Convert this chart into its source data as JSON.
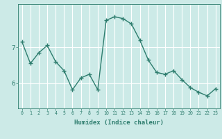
{
  "x": [
    0,
    1,
    2,
    3,
    4,
    5,
    6,
    7,
    8,
    9,
    10,
    11,
    12,
    13,
    14,
    15,
    16,
    17,
    18,
    19,
    20,
    21,
    22,
    23
  ],
  "y": [
    7.15,
    6.55,
    6.85,
    7.05,
    6.6,
    6.35,
    5.82,
    6.15,
    6.25,
    5.82,
    7.75,
    7.85,
    7.8,
    7.65,
    7.2,
    6.65,
    6.3,
    6.25,
    6.35,
    6.1,
    5.88,
    5.75,
    5.65,
    5.85
  ],
  "xlabel": "Humidex (Indice chaleur)",
  "ylabel": "",
  "yticks": [
    6,
    7
  ],
  "ylim": [
    5.3,
    8.2
  ],
  "xlim": [
    -0.5,
    23.5
  ],
  "line_color": "#2e7d6e",
  "bg_color": "#cceae7",
  "grid_color": "#ffffff",
  "marker": "+",
  "marker_size": 4,
  "line_width": 1.0,
  "xtick_fontsize": 4.8,
  "ytick_fontsize": 6.5,
  "xlabel_fontsize": 6.5
}
